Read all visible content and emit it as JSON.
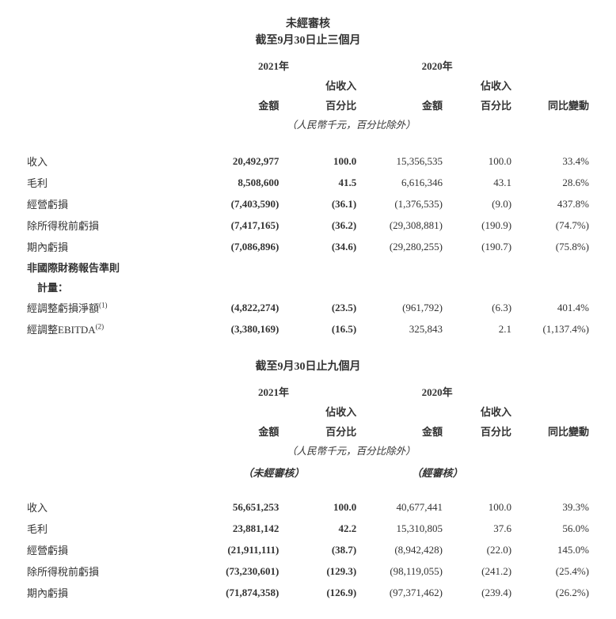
{
  "table1": {
    "title_line1": "未經審核",
    "title_line2": "截至9月30日止三個月",
    "year_cur": "2021年",
    "year_prev": "2020年",
    "hdr_amount": "金額",
    "hdr_pct_l1": "佔收入",
    "hdr_pct_l2": "百分比",
    "hdr_change": "同比變動",
    "note": "（人民幣千元，百分比除外）",
    "rows": [
      {
        "label": "收入",
        "a1": "20,492,977",
        "p1": "100.0",
        "a2": "15,356,535",
        "p2": "100.0",
        "chg": "33.4%",
        "bold": true
      },
      {
        "label": "毛利",
        "a1": "8,508,600",
        "p1": "41.5",
        "a2": "6,616,346",
        "p2": "43.1",
        "chg": "28.6%",
        "bold": true
      },
      {
        "label": "經營虧損",
        "a1": "(7,403,590)",
        "p1": "(36.1)",
        "a2": "(1,376,535)",
        "p2": "(9.0)",
        "chg": "437.8%",
        "bold": true
      },
      {
        "label": "除所得稅前虧損",
        "a1": "(7,417,165)",
        "p1": "(36.2)",
        "a2": "(29,308,881)",
        "p2": "(190.9)",
        "chg": "(74.7%)",
        "bold": true
      },
      {
        "label": "期內虧損",
        "a1": "(7,086,896)",
        "p1": "(34.6)",
        "a2": "(29,280,255)",
        "p2": "(190.7)",
        "chg": "(75.8%)",
        "bold": true
      }
    ],
    "section_hdr_l1": "非國際財務報告準則",
    "section_hdr_l2": "　計量：",
    "rows2": [
      {
        "label": "經調整虧損淨額",
        "sup": "(1)",
        "a1": "(4,822,274)",
        "p1": "(23.5)",
        "a2": "(961,792)",
        "p2": "(6.3)",
        "chg": "401.4%",
        "bold": true
      },
      {
        "label": "經調整EBITDA",
        "sup": "(2)",
        "a1": "(3,380,169)",
        "p1": "(16.5)",
        "a2": "325,843",
        "p2": "2.1",
        "chg": "(1,137.4%)",
        "bold": true
      }
    ]
  },
  "table2": {
    "title_line2": "截至9月30日止九個月",
    "year_cur": "2021年",
    "year_prev": "2020年",
    "hdr_amount": "金額",
    "hdr_pct_l1": "佔收入",
    "hdr_pct_l2": "百分比",
    "hdr_change": "同比變動",
    "note": "（人民幣千元，百分比除外）",
    "audit_cur": "（未經審核）",
    "audit_prev": "（經審核）",
    "rows": [
      {
        "label": "收入",
        "a1": "56,651,253",
        "p1": "100.0",
        "a2": "40,677,441",
        "p2": "100.0",
        "chg": "39.3%",
        "bold": true
      },
      {
        "label": "毛利",
        "a1": "23,881,142",
        "p1": "42.2",
        "a2": "15,310,805",
        "p2": "37.6",
        "chg": "56.0%",
        "bold": true
      },
      {
        "label": "經營虧損",
        "a1": "(21,911,111)",
        "p1": "(38.7)",
        "a2": "(8,942,428)",
        "p2": "(22.0)",
        "chg": "145.0%",
        "bold": true
      },
      {
        "label": "除所得稅前虧損",
        "a1": "(73,230,601)",
        "p1": "(129.3)",
        "a2": "(98,119,055)",
        "p2": "(241.2)",
        "chg": "(25.4%)",
        "bold": true
      },
      {
        "label": "期內虧損",
        "a1": "(71,874,358)",
        "p1": "(126.9)",
        "a2": "(97,371,462)",
        "p2": "(239.4)",
        "chg": "(26.2%)",
        "bold": true
      }
    ]
  },
  "colors": {
    "text": "#333333",
    "background": "#ffffff"
  }
}
